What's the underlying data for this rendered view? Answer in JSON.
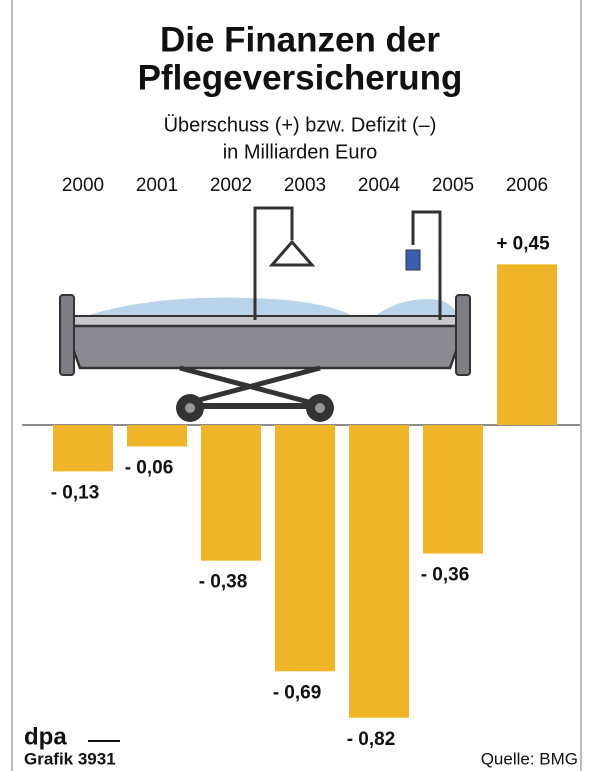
{
  "chart_data": {
    "type": "bar",
    "title": [
      "Die Finanzen der",
      "Pflegeversicherung"
    ],
    "subtitle": [
      "Überschuss (+) bzw. Defizit (–)",
      "in Milliarden Euro"
    ],
    "categories": [
      "2000",
      "2001",
      "2002",
      "2003",
      "2004",
      "2005",
      "2006"
    ],
    "values": [
      -0.13,
      -0.06,
      -0.38,
      -0.69,
      -0.82,
      -0.36,
      0.45
    ],
    "value_labels": [
      "- 0,13",
      "- 0,06",
      "- 0,38",
      "- 0,69",
      "- 0,82",
      "- 0,36",
      "+ 0,45"
    ],
    "color": "#f0b429",
    "footer": {
      "agency": "dpa",
      "graphic": "Grafik 3931",
      "source": "Quelle: BMG"
    }
  }
}
